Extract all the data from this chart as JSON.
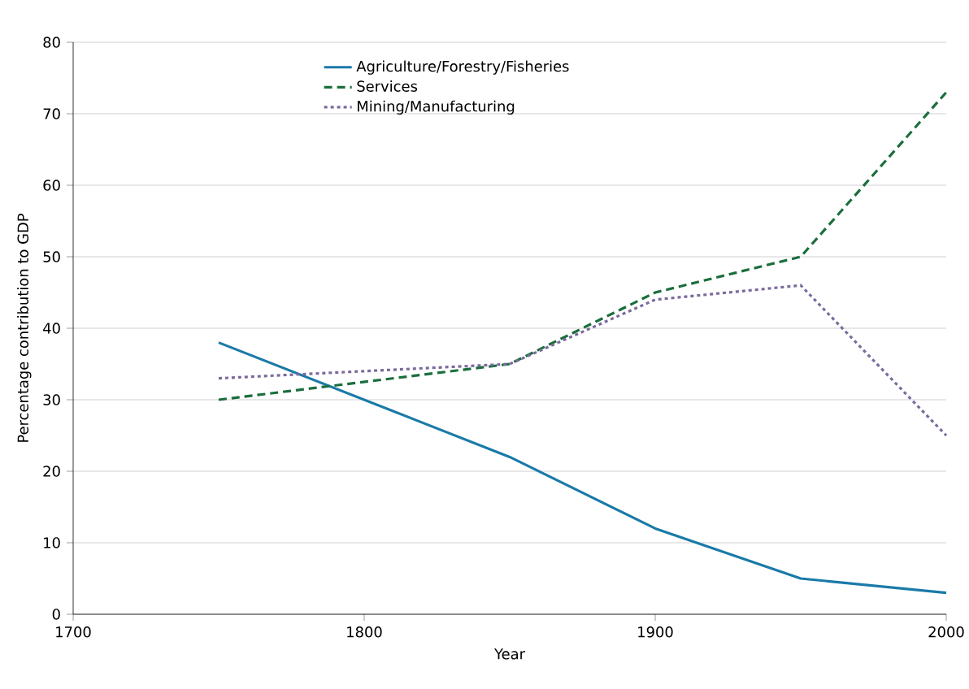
{
  "chart_data": {
    "type": "line",
    "xlabel": "Year",
    "ylabel": "Percentage contribution to GDP",
    "xlim": [
      1700,
      2000
    ],
    "xticks": [
      1700,
      1800,
      1900,
      2000
    ],
    "ylim": [
      0,
      80
    ],
    "yticks": [
      0,
      10,
      20,
      30,
      40,
      50,
      60,
      70,
      80
    ],
    "grid": "y",
    "legend": "top",
    "series": [
      {
        "name": "Agriculture/Forestry/Fisheries",
        "color": "#1a7aa8",
        "line_style": "solid",
        "x": [
          1750,
          1800,
          1850,
          1900,
          1950,
          2000
        ],
        "values": [
          38,
          30,
          22,
          12,
          5,
          3
        ]
      },
      {
        "name": "Services",
        "color": "#1a6e3c",
        "line_style": "dashed",
        "x": [
          1750,
          1800,
          1850,
          1900,
          1950,
          2000
        ],
        "values": [
          30,
          32.5,
          35,
          45,
          50,
          73
        ]
      },
      {
        "name": "Mining/Manufacturing",
        "color": "#7a6a9e",
        "line_style": "dotted",
        "x": [
          1750,
          1800,
          1850,
          1900,
          1950,
          2000
        ],
        "values": [
          33,
          34,
          35,
          44,
          46,
          25
        ]
      }
    ]
  }
}
